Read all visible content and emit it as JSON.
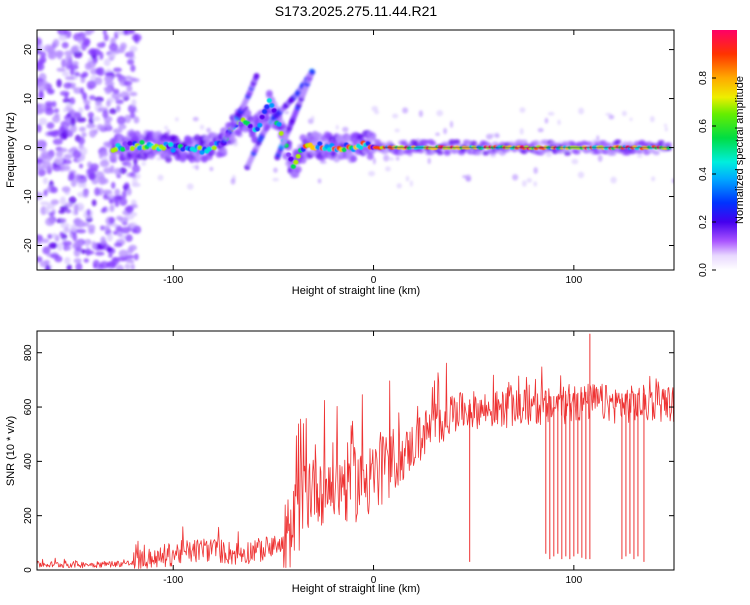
{
  "figure_title": "S173.2025.275.11.44.R21",
  "chart_data": [
    {
      "type": "heatmap",
      "title": "S173.2025.275.11.44.R21",
      "xlabel": "Height of straight line (km)",
      "ylabel": "Frequency (Hz)",
      "xlim": [
        -168,
        150
      ],
      "ylim": [
        -25,
        24
      ],
      "xticks": [
        -100,
        0,
        100
      ],
      "yticks": [
        -20,
        -10,
        0,
        10,
        20
      ],
      "colorbar": {
        "label": "Normalized spectral amplitude",
        "range": [
          0.0,
          1.0
        ],
        "ticks": [
          0.0,
          0.2,
          0.4,
          0.6,
          0.8
        ]
      },
      "ridge": [
        {
          "x": -130,
          "y": 0
        },
        {
          "x": -115,
          "y": 0.5
        },
        {
          "x": -100,
          "y": 0
        },
        {
          "x": -85,
          "y": -0.5
        },
        {
          "x": -75,
          "y": 1
        },
        {
          "x": -70,
          "y": 4
        },
        {
          "x": -65,
          "y": 6
        },
        {
          "x": -60,
          "y": 3
        },
        {
          "x": -55,
          "y": 6
        },
        {
          "x": -52,
          "y": 10
        },
        {
          "x": -48,
          "y": 5
        },
        {
          "x": -45,
          "y": 2
        },
        {
          "x": -40,
          "y": -4
        },
        {
          "x": -35,
          "y": 0
        },
        {
          "x": -30,
          "y": 0.5
        },
        {
          "x": -20,
          "y": 0
        },
        {
          "x": -10,
          "y": 0
        },
        {
          "x": -3,
          "y": 1
        },
        {
          "x": 0,
          "y": 0
        },
        {
          "x": 20,
          "y": 0
        },
        {
          "x": 50,
          "y": 0
        },
        {
          "x": 100,
          "y": 0
        },
        {
          "x": 148,
          "y": 0
        }
      ],
      "branches": [
        [
          {
            "x": -63,
            "y": -4
          },
          {
            "x": -55,
            "y": 3
          },
          {
            "x": -50,
            "y": 6
          },
          {
            "x": -45,
            "y": 8
          },
          {
            "x": -38,
            "y": 11
          },
          {
            "x": -30,
            "y": 16
          }
        ],
        [
          {
            "x": -75,
            "y": 1
          },
          {
            "x": -68,
            "y": 6
          },
          {
            "x": -62,
            "y": 11
          },
          {
            "x": -58,
            "y": 15
          }
        ],
        [
          {
            "x": -48,
            "y": -2
          },
          {
            "x": -42,
            "y": 4
          },
          {
            "x": -36,
            "y": 10
          },
          {
            "x": -30,
            "y": 16
          }
        ]
      ]
    },
    {
      "type": "line",
      "xlabel": "Height of straight line (km)",
      "ylabel": "SNR (10 * v/v)",
      "xlim": [
        -168,
        150
      ],
      "ylim": [
        0,
        880
      ],
      "xticks": [
        -100,
        0,
        100
      ],
      "yticks": [
        0,
        200,
        400,
        600,
        800
      ],
      "line_color": "#ee3333",
      "series": [
        {
          "name": "SNR",
          "points": [
            {
              "x": -168,
              "y": 20
            },
            {
              "x": -140,
              "y": 20
            },
            {
              "x": -120,
              "y": 25
            },
            {
              "x": -110,
              "y": 40
            },
            {
              "x": -100,
              "y": 60
            },
            {
              "x": -90,
              "y": 70
            },
            {
              "x": -80,
              "y": 75
            },
            {
              "x": -70,
              "y": 60
            },
            {
              "x": -60,
              "y": 70
            },
            {
              "x": -50,
              "y": 80
            },
            {
              "x": -45,
              "y": 90
            },
            {
              "x": -40,
              "y": 160
            },
            {
              "x": -35,
              "y": 270
            },
            {
              "x": -30,
              "y": 330
            },
            {
              "x": -25,
              "y": 310
            },
            {
              "x": -20,
              "y": 320
            },
            {
              "x": -15,
              "y": 320
            },
            {
              "x": -10,
              "y": 320
            },
            {
              "x": -5,
              "y": 340
            },
            {
              "x": 0,
              "y": 340
            },
            {
              "x": 5,
              "y": 350
            },
            {
              "x": 10,
              "y": 380
            },
            {
              "x": 15,
              "y": 420
            },
            {
              "x": 20,
              "y": 460
            },
            {
              "x": 25,
              "y": 500
            },
            {
              "x": 30,
              "y": 530
            },
            {
              "x": 35,
              "y": 560
            },
            {
              "x": 40,
              "y": 580
            },
            {
              "x": 50,
              "y": 590
            },
            {
              "x": 60,
              "y": 590
            },
            {
              "x": 70,
              "y": 595
            },
            {
              "x": 80,
              "y": 600
            },
            {
              "x": 90,
              "y": 600
            },
            {
              "x": 100,
              "y": 610
            },
            {
              "x": 110,
              "y": 620
            },
            {
              "x": 120,
              "y": 610
            },
            {
              "x": 130,
              "y": 610
            },
            {
              "x": 140,
              "y": 615
            },
            {
              "x": 150,
              "y": 615
            }
          ],
          "dropouts": [
            {
              "x": 48,
              "y": 30
            },
            {
              "x": 86,
              "y": 60
            },
            {
              "x": 88,
              "y": 40
            },
            {
              "x": 90,
              "y": 50
            },
            {
              "x": 92,
              "y": 60
            },
            {
              "x": 94,
              "y": 40
            },
            {
              "x": 96,
              "y": 50
            },
            {
              "x": 98,
              "y": 40
            },
            {
              "x": 100,
              "y": 50
            },
            {
              "x": 102,
              "y": 60
            },
            {
              "x": 104,
              "y": 45
            },
            {
              "x": 106,
              "y": 40
            },
            {
              "x": 108,
              "y": 40
            },
            {
              "x": 124,
              "y": 40
            },
            {
              "x": 126,
              "y": 50
            },
            {
              "x": 128,
              "y": 60
            },
            {
              "x": 130,
              "y": 40
            },
            {
              "x": 132,
              "y": 50
            },
            {
              "x": 135,
              "y": 30
            }
          ]
        }
      ]
    }
  ]
}
